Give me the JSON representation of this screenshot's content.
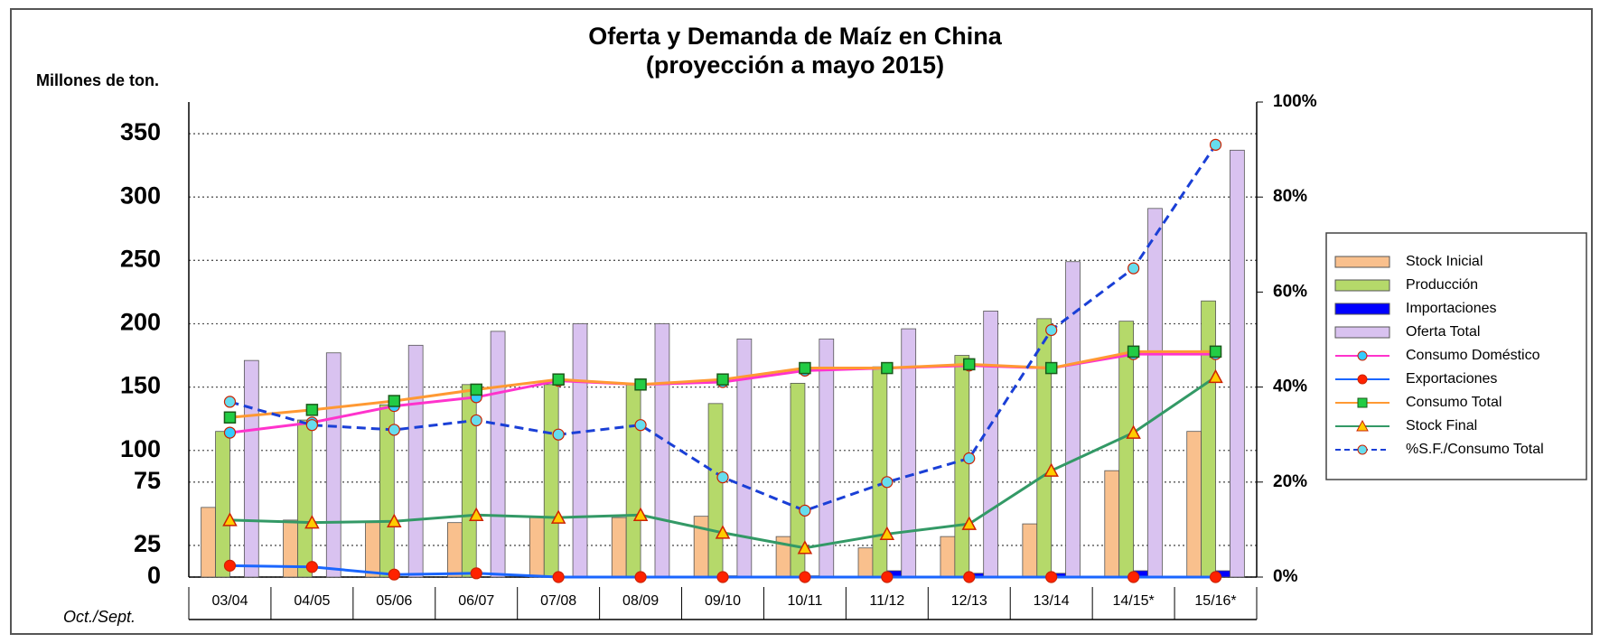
{
  "chart_data": {
    "type": "combo",
    "title": "Oferta y Demanda de Maíz en China",
    "subtitle": "(proyección a mayo 2015)",
    "y_label": "Millones de ton.",
    "x_label": "Oct./Sept.",
    "categories": [
      "03/04",
      "04/05",
      "05/06",
      "06/07",
      "07/08",
      "08/09",
      "09/10",
      "10/11",
      "11/12",
      "12/13",
      "13/14",
      "14/15*",
      "15/16*"
    ],
    "ylim": [
      0,
      375
    ],
    "yticks": [
      0,
      25,
      75,
      100,
      150,
      200,
      250,
      300,
      350
    ],
    "y2lim": [
      0,
      100
    ],
    "y2ticks": [
      {
        "value": 0,
        "label": "0%"
      },
      {
        "value": 20,
        "label": "20%"
      },
      {
        "value": 40,
        "label": "40%"
      },
      {
        "value": 60,
        "label": "60%"
      },
      {
        "value": 80,
        "label": "80%"
      },
      {
        "value": 100,
        "label": "100%"
      }
    ],
    "grid": true,
    "legend": "right",
    "series": [
      {
        "name": "Stock Inicial",
        "type": "bar",
        "color": "#f9c08d",
        "values": [
          55,
          45,
          43,
          43,
          47,
          47,
          48,
          32,
          23,
          32,
          42,
          84,
          115
        ]
      },
      {
        "name": "Producción",
        "type": "bar",
        "color": "#b5d96a",
        "values": [
          115,
          124,
          136,
          152,
          152,
          152,
          137,
          153,
          166,
          175,
          204,
          202,
          218
        ]
      },
      {
        "name": "Importaciones",
        "type": "bar",
        "color": "#0000ff",
        "values": [
          0,
          0,
          0,
          0,
          0,
          0,
          1,
          1,
          5,
          3,
          3,
          5,
          5
        ]
      },
      {
        "name": "Oferta Total",
        "type": "bar",
        "color": "#d9c2f0",
        "values": [
          171,
          177,
          183,
          194,
          200,
          200,
          188,
          188,
          196,
          210,
          249,
          291,
          337
        ]
      },
      {
        "name": "Consumo Doméstico",
        "type": "line",
        "color": "#ff33cc",
        "marker": "circle",
        "marker_color": "#33ccff",
        "values": [
          114,
          122,
          135,
          142,
          155,
          152,
          154,
          163,
          165,
          167,
          165,
          176,
          176
        ]
      },
      {
        "name": "Exportaciones",
        "type": "line",
        "color": "#1a66ff",
        "marker": "circle",
        "marker_color": "#ff2200",
        "values": [
          9,
          8,
          2,
          3,
          0,
          0,
          0,
          0,
          0,
          0,
          0,
          0,
          0
        ]
      },
      {
        "name": "Consumo Total",
        "type": "line",
        "color": "#ff9933",
        "marker": "square",
        "marker_color": "#22cc44",
        "values": [
          126,
          132,
          139,
          148,
          156,
          152,
          156,
          165,
          165,
          168,
          165,
          178,
          178
        ]
      },
      {
        "name": "Stock Final",
        "type": "line",
        "color": "#339966",
        "marker": "triangle",
        "marker_color": "#ffcc00",
        "values": [
          45,
          43,
          44,
          49,
          47,
          49,
          35,
          23,
          34,
          42,
          84,
          114,
          158
        ]
      },
      {
        "name": "%S.F./Consumo Total",
        "type": "line",
        "axis": "y2",
        "dashed": true,
        "color": "#1a3fd6",
        "marker": "circle",
        "marker_color": "#66ddee",
        "values": [
          36.9,
          32,
          31,
          33,
          30,
          32,
          21,
          14,
          20,
          25,
          52,
          65,
          91
        ]
      }
    ]
  }
}
